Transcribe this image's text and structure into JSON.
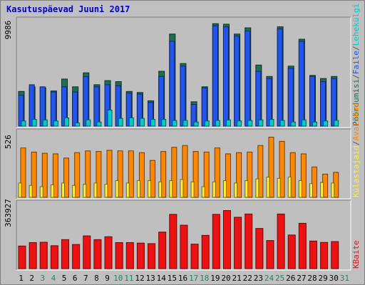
{
  "title": "Kasutuspäevad Juuni 2017",
  "colors": {
    "background": "#c0c0c0",
    "title": "#0000cc",
    "pages": "#00cccc",
    "hits": "#2255ee",
    "visits": "#1e6f4f",
    "visitors": "#ffee33",
    "unique": "#ff8800",
    "bandwidth": "#ee1111",
    "weekday_label": "#000000",
    "weekend_label": "#228866"
  },
  "chart_data": {
    "type": "bar",
    "x_days": [
      "1",
      "2",
      "3",
      "4",
      "5",
      "6",
      "7",
      "8",
      "9",
      "10",
      "11",
      "12",
      "13",
      "14",
      "15",
      "16",
      "17",
      "18",
      "19",
      "20",
      "21",
      "22",
      "23",
      "24",
      "25",
      "26",
      "27",
      "28",
      "29",
      "30",
      "31"
    ],
    "weekend_days": [
      "3",
      "4",
      "10",
      "11",
      "17",
      "18",
      "24",
      "25",
      "31"
    ],
    "panels": [
      {
        "name": "top",
        "ymax_label": "9986",
        "ymax": 9986,
        "legend": [
          {
            "label": "Pöördumisi",
            "color": "#1e6f4f"
          },
          {
            "label": "/",
            "color": "#555555"
          },
          {
            "label": "Faile",
            "color": "#2255ee"
          },
          {
            "label": "/",
            "color": "#555555"
          },
          {
            "label": "Lehekülgi",
            "color": "#00cccc"
          }
        ],
        "series": [
          {
            "name": "Pöördumisi",
            "values": [
              3350,
              3800,
              3700,
              3400,
              4550,
              3800,
              5150,
              4000,
              4400,
              4300,
              3350,
              3250,
              2450,
              5300,
              8900,
              6050,
              2350,
              3800,
              9900,
              9850,
              8900,
              9500,
              5900,
              4800,
              9600,
              5800,
              8400,
              4900,
              4600,
              4800,
              0
            ]
          },
          {
            "name": "Faile",
            "values": [
              3000,
              4000,
              3800,
              3300,
              3800,
              3300,
              4800,
              3800,
              4000,
              3900,
              3200,
              3100,
              2300,
              4800,
              8200,
              5800,
              2100,
              3700,
              9700,
              9600,
              8700,
              9200,
              5300,
              4600,
              9400,
              5600,
              8200,
              4800,
              4300,
              4600,
              0
            ]
          },
          {
            "name": "Lehekülgi",
            "values": [
              500,
              650,
              600,
              500,
              800,
              300,
              600,
              400,
              1550,
              750,
              800,
              750,
              650,
              650,
              550,
              550,
              400,
              500,
              550,
              600,
              500,
              550,
              600,
              650,
              550,
              400,
              600,
              400,
              500,
              550,
              0
            ]
          }
        ]
      },
      {
        "name": "middle",
        "ymax_label": "526",
        "ymax": 526,
        "legend": [
          {
            "label": "Külastajaid",
            "color": "#ffee33"
          },
          {
            "label": "/",
            "color": "#555555"
          },
          {
            "label": "Avalikud",
            "color": "#ff8800"
          }
        ],
        "series": [
          {
            "name": "Avalikud",
            "values": [
              415,
              380,
              370,
              365,
              330,
              375,
              390,
              385,
              395,
              390,
              390,
              375,
              310,
              385,
              420,
              435,
              385,
              380,
              415,
              365,
              375,
              380,
              435,
              505,
              470,
              375,
              365,
              255,
              195,
              210,
              0
            ]
          },
          {
            "name": "Külastajaid",
            "values": [
              120,
              100,
              90,
              105,
              120,
              100,
              110,
              120,
              110,
              140,
              120,
              140,
              140,
              130,
              140,
              150,
              130,
              90,
              130,
              140,
              120,
              140,
              155,
              170,
              160,
              170,
              140,
              115,
              125,
              120,
              0
            ]
          }
        ]
      },
      {
        "name": "bottom",
        "ymax_label": "363927",
        "ymax": 363927,
        "legend": [
          {
            "label": "KBaite",
            "color": "#ee1111"
          }
        ],
        "series": [
          {
            "name": "KBaite",
            "values": [
              131000,
              151000,
              153000,
              133000,
              168000,
              140000,
              190000,
              168000,
              185000,
              151000,
              151000,
              148000,
              145000,
              212000,
              315000,
              252000,
              142000,
              193000,
              315000,
              337000,
              298000,
              317000,
              233000,
              163000,
              317000,
              195000,
              263000,
              160000,
              152000,
              157000,
              0
            ]
          }
        ]
      }
    ]
  }
}
